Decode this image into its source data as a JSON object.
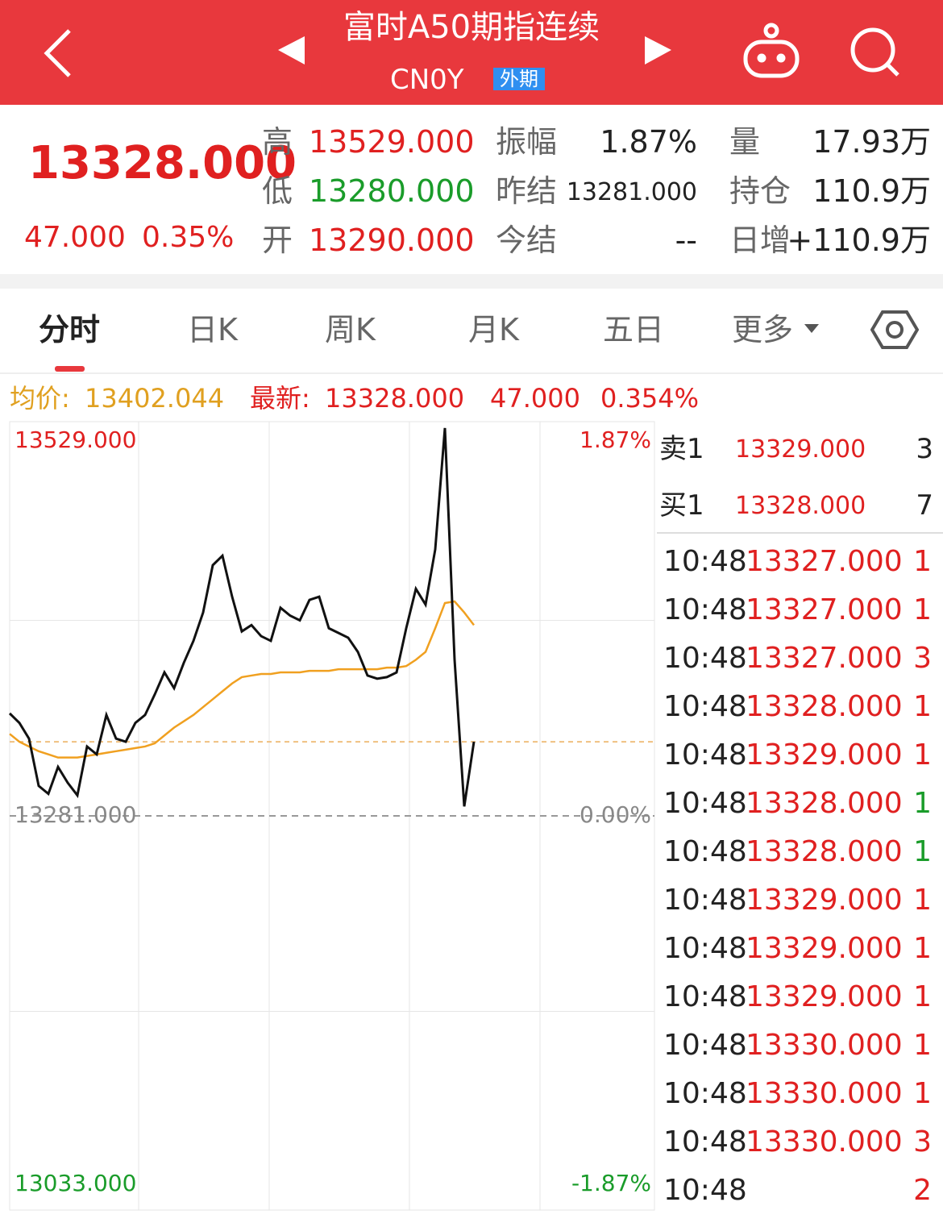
{
  "header": {
    "title": "富时A50期指连续",
    "code": "CN0Y",
    "tag": "外期"
  },
  "quote": {
    "price": "13328.000",
    "change": "47.000",
    "change_pct": "0.35%",
    "stats": [
      {
        "label": "高",
        "value": "13529.000",
        "color": "#e02020"
      },
      {
        "label": "振幅",
        "value": "1.87%",
        "color": "#222222"
      },
      {
        "label": "量",
        "value": "17.93万",
        "color": "#222222"
      },
      {
        "label": "低",
        "value": "13280.000",
        "color": "#1a9c2a"
      },
      {
        "label": "昨结",
        "value": "13281.000",
        "color": "#222222"
      },
      {
        "label": "持仓",
        "value": "110.9万",
        "color": "#222222"
      },
      {
        "label": "开",
        "value": "13290.000",
        "color": "#e02020"
      },
      {
        "label": "今结",
        "value": "--",
        "color": "#222222"
      },
      {
        "label": "日增",
        "value": "+110.9万",
        "color": "#222222"
      }
    ]
  },
  "tabs": [
    "分时",
    "日K",
    "周K",
    "月K",
    "五日",
    "更多"
  ],
  "summary": {
    "avg_label": "均价:",
    "avg": "13402.044",
    "last_label": "最新:",
    "last": "13328.000",
    "change": "47.000",
    "change_pct": "0.354%"
  },
  "order_book": [
    {
      "side": "卖1",
      "price": "13329.000",
      "qty": "3"
    },
    {
      "side": "买1",
      "price": "13328.000",
      "qty": "7"
    }
  ],
  "trades": [
    {
      "time": "10:48",
      "price": "13327.000",
      "qty": "1",
      "color": "#e02020"
    },
    {
      "time": "10:48",
      "price": "13327.000",
      "qty": "1",
      "color": "#e02020"
    },
    {
      "time": "10:48",
      "price": "13327.000",
      "qty": "3",
      "color": "#e02020"
    },
    {
      "time": "10:48",
      "price": "13328.000",
      "qty": "1",
      "color": "#e02020"
    },
    {
      "time": "10:48",
      "price": "13329.000",
      "qty": "1",
      "color": "#e02020"
    },
    {
      "time": "10:48",
      "price": "13328.000",
      "qty": "1",
      "color": "#1a9c2a"
    },
    {
      "time": "10:48",
      "price": "13328.000",
      "qty": "1",
      "color": "#1a9c2a"
    },
    {
      "time": "10:48",
      "price": "13329.000",
      "qty": "1",
      "color": "#e02020"
    },
    {
      "time": "10:48",
      "price": "13329.000",
      "qty": "1",
      "color": "#e02020"
    },
    {
      "time": "10:48",
      "price": "13329.000",
      "qty": "1",
      "color": "#e02020"
    },
    {
      "time": "10:48",
      "price": "13330.000",
      "qty": "1",
      "color": "#e02020"
    },
    {
      "time": "10:48",
      "price": "13330.000",
      "qty": "1",
      "color": "#e02020"
    },
    {
      "time": "10:48",
      "price": "13330.000",
      "qty": "3",
      "color": "#e02020"
    },
    {
      "time": "10:48",
      "price": null,
      "qty": "2",
      "color": "#e02020"
    }
  ],
  "chart_data": {
    "type": "line",
    "ylim": [
      13033,
      13529
    ],
    "yticks": [
      {
        "value": 13529,
        "label": "13529.000"
      },
      {
        "value": 13281,
        "label": "13281.000"
      },
      {
        "value": 13033,
        "label": "13033.000"
      }
    ],
    "y2lim": [
      -1.87,
      1.87
    ],
    "y2ticks": [
      {
        "value": 1.87,
        "label": "1.87%"
      },
      {
        "value": 0,
        "label": "0.00%"
      },
      {
        "value": -1.87,
        "label": "-1.87%"
      }
    ],
    "current_line": {
      "value": 13328,
      "color": "#f0c080"
    },
    "series": [
      {
        "color": "#111111",
        "values": [
          13346,
          13340,
          13330,
          13300,
          13295,
          13312,
          13302,
          13294,
          13325,
          13320,
          13345,
          13330,
          13328,
          13340,
          13345,
          13358,
          13372,
          13362,
          13378,
          13392,
          13410,
          13440,
          13446,
          13420,
          13398,
          13402,
          13395,
          13392,
          13413,
          13408,
          13405,
          13418,
          13420,
          13400,
          13397,
          13394,
          13385,
          13370,
          13368,
          13369,
          13372,
          13400,
          13425,
          13415,
          13450,
          13527,
          13380,
          13287,
          13328
        ]
      },
      {
        "color": "#f0a020",
        "values": [
          13333,
          13328,
          13325,
          13322,
          13320,
          13318,
          13318,
          13318,
          13319,
          13320,
          13321,
          13322,
          13323,
          13324,
          13325,
          13327,
          13332,
          13337,
          13341,
          13345,
          13350,
          13355,
          13360,
          13365,
          13369,
          13370,
          13371,
          13371,
          13372,
          13372,
          13372,
          13373,
          13373,
          13373,
          13374,
          13374,
          13374,
          13374,
          13374,
          13375,
          13375,
          13376,
          13380,
          13385,
          13400,
          13416,
          13417,
          13410,
          13402
        ]
      }
    ]
  }
}
